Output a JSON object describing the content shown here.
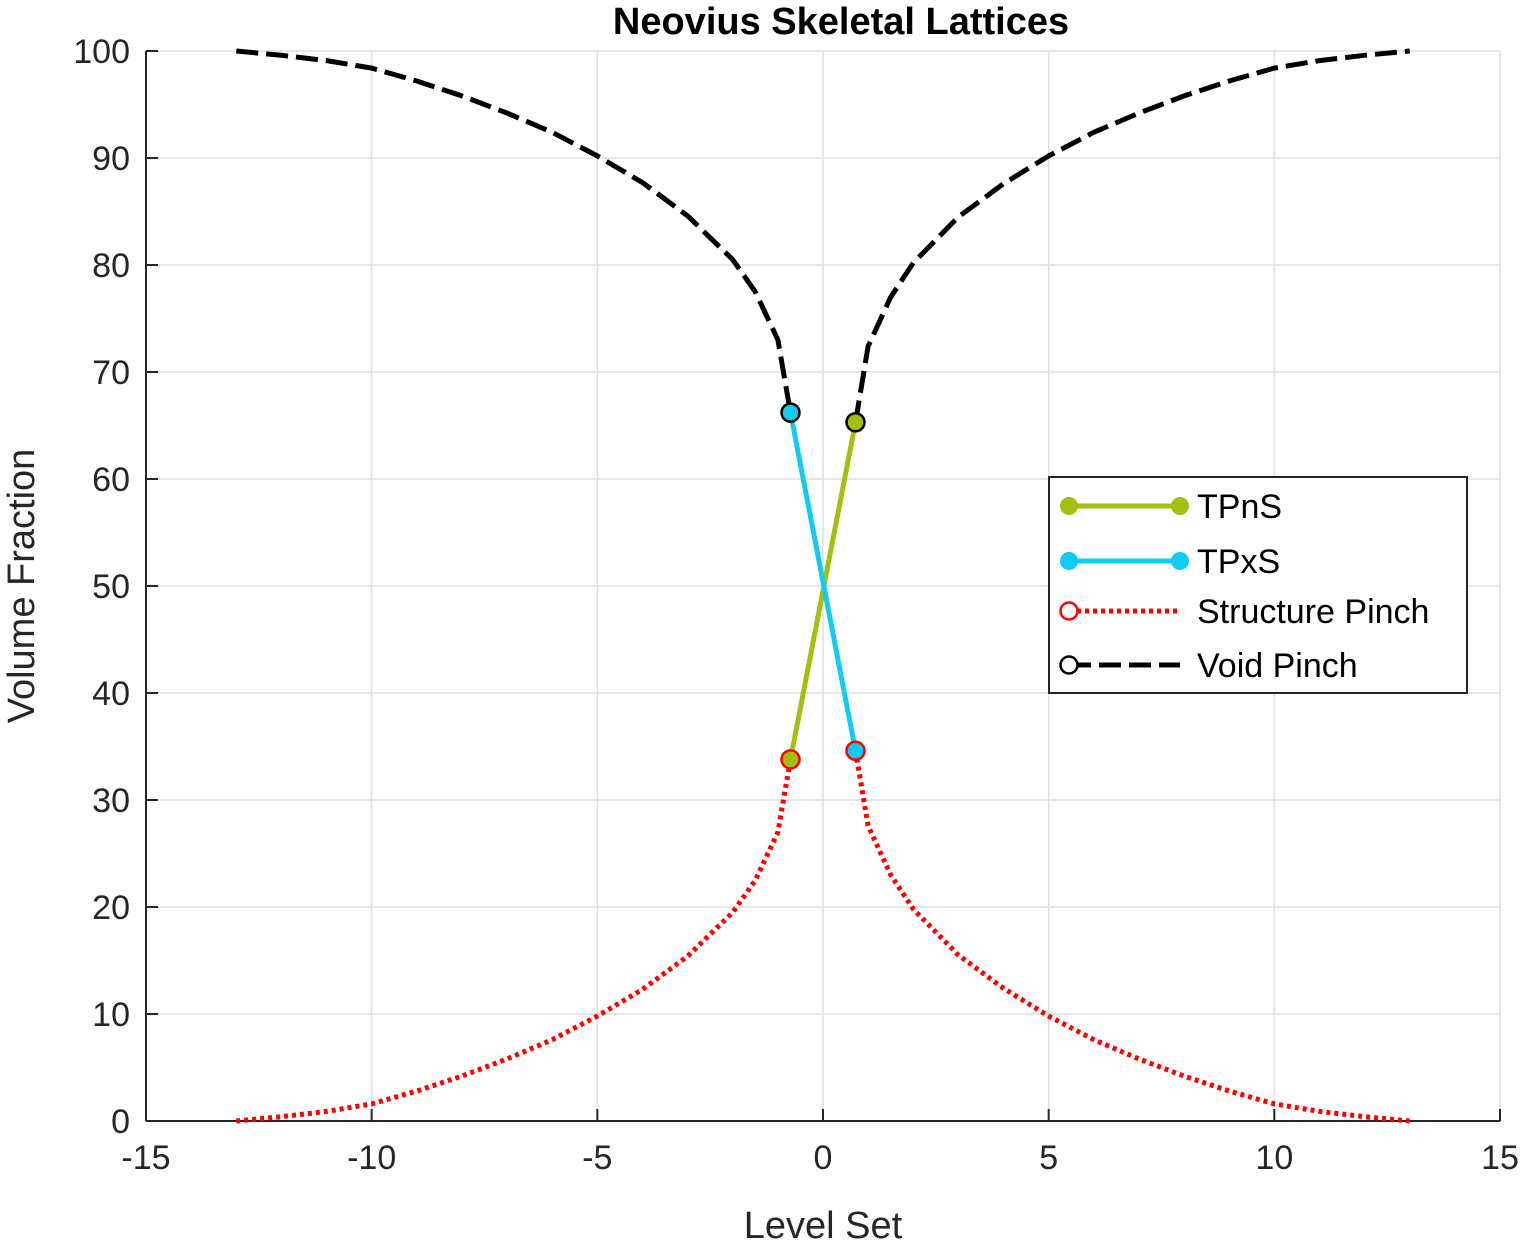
{
  "chart_data": {
    "type": "line",
    "title": "Neovius Skeletal Lattices",
    "xlabel": "Level Set",
    "ylabel": "Volume Fraction",
    "xlim": [
      -15,
      15
    ],
    "ylim": [
      0,
      100
    ],
    "xticks": [
      -15,
      -10,
      -5,
      0,
      5,
      10,
      15
    ],
    "yticks": [
      0,
      10,
      20,
      30,
      40,
      50,
      60,
      70,
      80,
      90,
      100
    ],
    "grid": true,
    "legend_position": "center-right",
    "series": [
      {
        "name": "TPnS",
        "color": "#a3c00f",
        "style": "solid",
        "marker": "filled-circle",
        "x": [
          -0.72,
          0.72
        ],
        "y": [
          33.8,
          65.3
        ]
      },
      {
        "name": "TPxS",
        "color": "#0fccf0",
        "style": "solid",
        "marker": "filled-circle",
        "x": [
          -0.72,
          0.72
        ],
        "y": [
          66.2,
          34.6
        ]
      },
      {
        "name": "Structure Pinch",
        "color": "#ff0000",
        "style": "dotted",
        "marker": "open-circle",
        "x": [
          -13,
          -12,
          -11,
          -10,
          -9,
          -8,
          -7,
          -6,
          -5,
          -4,
          -3,
          -2,
          -1.5,
          -1,
          -0.72,
          0.72,
          1,
          1.5,
          2,
          3,
          4,
          5,
          6,
          7,
          8,
          9,
          10,
          11,
          12,
          13
        ],
        "y": [
          0,
          0.4,
          0.9,
          1.6,
          2.8,
          4.2,
          5.8,
          7.6,
          9.8,
          12.3,
          15.4,
          19.5,
          22.5,
          27.0,
          33.8,
          34.6,
          27.6,
          23.0,
          19.8,
          15.5,
          12.4,
          9.8,
          7.6,
          5.8,
          4.2,
          2.8,
          1.6,
          0.9,
          0.4,
          0
        ]
      },
      {
        "name": "Void Pinch",
        "color": "#000000",
        "style": "dashed",
        "marker": "open-circle",
        "x": [
          -13,
          -12,
          -11,
          -10,
          -9,
          -8,
          -7,
          -6,
          -5,
          -4,
          -3,
          -2,
          -1.5,
          -1,
          -0.72,
          0.72,
          1,
          1.5,
          2,
          3,
          4,
          5,
          6,
          7,
          8,
          9,
          10,
          11,
          12,
          13
        ],
        "y": [
          100,
          99.6,
          99.1,
          98.4,
          97.2,
          95.8,
          94.2,
          92.4,
          90.2,
          87.7,
          84.6,
          80.5,
          77.5,
          73.0,
          66.2,
          65.3,
          72.4,
          77.0,
          80.2,
          84.5,
          87.6,
          90.2,
          92.4,
          94.2,
          95.8,
          97.2,
          98.4,
          99.1,
          99.6,
          100
        ]
      }
    ]
  }
}
